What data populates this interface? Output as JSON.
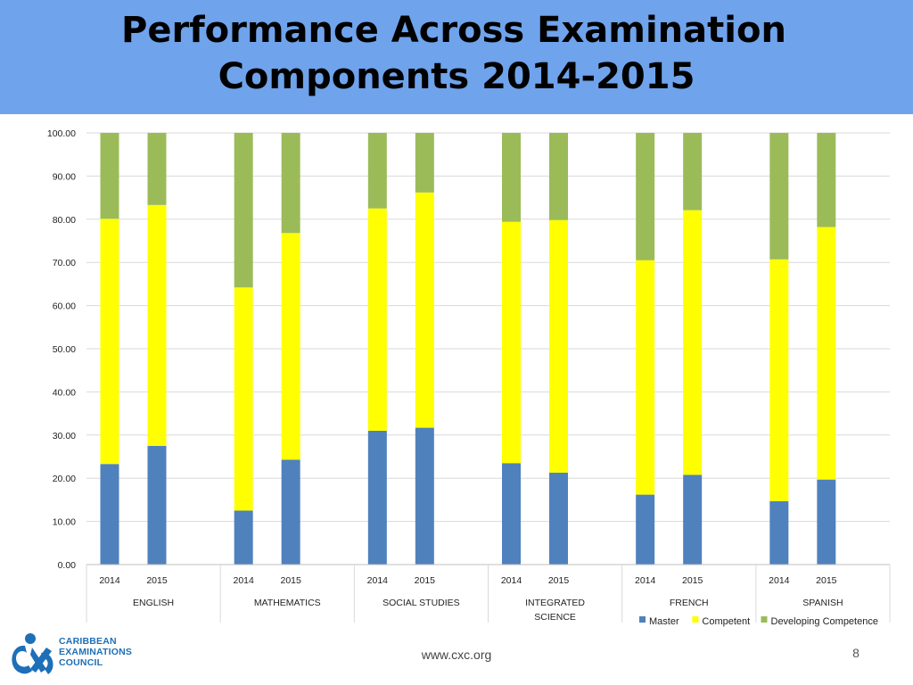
{
  "slide": {
    "title_line1": "Performance Across Examination",
    "title_line2": "Components 2014-2015",
    "footer_url": "www.cxc.org",
    "page_number": "8",
    "logo": {
      "line1": "CARIBBEAN",
      "line2": "EXAMINATIONS",
      "line3": "COUNCIL",
      "monogram": "CXC"
    }
  },
  "chart_data": {
    "type": "bar",
    "stacked": true,
    "ylim": [
      0,
      100
    ],
    "yticks": [
      "0.00",
      "10.00",
      "20.00",
      "30.00",
      "40.00",
      "50.00",
      "60.00",
      "70.00",
      "80.00",
      "90.00",
      "100.00"
    ],
    "grid": true,
    "legend_position": "bottom-right",
    "groups": [
      {
        "label": "ENGLISH",
        "label_lines": [
          "ENGLISH"
        ]
      },
      {
        "label": "MATHEMATICS",
        "label_lines": [
          "MATHEMATICS"
        ]
      },
      {
        "label": "SOCIAL STUDIES",
        "label_lines": [
          "SOCIAL STUDIES"
        ]
      },
      {
        "label": "INTEGRATED SCIENCE",
        "label_lines": [
          "INTEGRATED",
          "SCIENCE"
        ]
      },
      {
        "label": "FRENCH",
        "label_lines": [
          "FRENCH"
        ]
      },
      {
        "label": "SPANISH",
        "label_lines": [
          "SPANISH"
        ]
      }
    ],
    "years": [
      "2014",
      "2015"
    ],
    "series": [
      {
        "name": "Master",
        "color": "#4f81bd",
        "values": [
          23.3,
          27.5,
          12.5,
          24.3,
          31.0,
          31.7,
          23.5,
          21.3,
          16.2,
          20.8,
          14.7,
          19.7
        ]
      },
      {
        "name": "Competent",
        "color": "#ffff00",
        "values": [
          56.8,
          55.8,
          51.7,
          52.5,
          51.5,
          54.5,
          55.9,
          58.5,
          54.3,
          61.3,
          56.0,
          58.5
        ]
      },
      {
        "name": "Developing Competence",
        "color": "#9bbb59",
        "values": [
          19.9,
          16.7,
          35.8,
          23.2,
          17.5,
          13.8,
          20.6,
          20.2,
          29.5,
          17.9,
          29.3,
          21.8
        ]
      }
    ]
  }
}
